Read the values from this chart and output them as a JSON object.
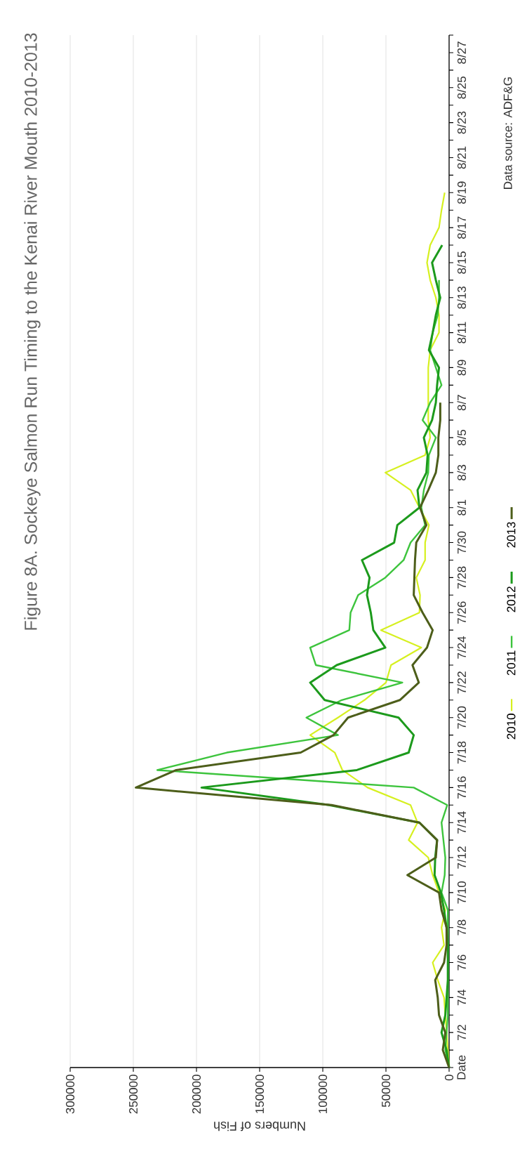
{
  "chart_data": {
    "type": "line",
    "orientation": "horizontal",
    "title": "Figure 8A. Sockeye Salmon Run Timing to the Kenai River Mouth 2010-2013",
    "xlabel": "Numbers of Fish",
    "annotations": [
      "Data source: ADF&G"
    ],
    "categories": [
      null,
      "8/27",
      null,
      "8/25",
      null,
      "8/23",
      null,
      "8/21",
      null,
      "8/19",
      null,
      "8/17",
      null,
      "8/15",
      null,
      "8/13",
      null,
      "8/11",
      null,
      "8/9",
      null,
      "8/7",
      null,
      "8/5",
      null,
      "8/3",
      null,
      "8/1",
      null,
      "7/30",
      null,
      "7/28",
      null,
      "7/26",
      null,
      "7/24",
      null,
      "7/22",
      null,
      "7/20",
      null,
      "7/18",
      null,
      "7/16",
      null,
      "7/14",
      null,
      "7/12",
      null,
      "7/10",
      null,
      "7/8",
      null,
      "7/6",
      null,
      "7/4",
      null,
      "7/2",
      null,
      "Date"
    ],
    "series": [
      {
        "name": "2010",
        "color": "#d6f020",
        "values": [
          null,
          null,
          null,
          null,
          null,
          null,
          null,
          null,
          null,
          3500,
          6000,
          8000,
          15000,
          17500,
          15000,
          10500,
          8000,
          8000,
          15000,
          16500,
          16500,
          16500,
          16500,
          15000,
          19000,
          50500,
          30500,
          23500,
          16000,
          19000,
          19000,
          26000,
          23000,
          23500,
          54000,
          22000,
          46000,
          50000,
          67000,
          88000,
          110000,
          90500,
          84500,
          64500,
          30500,
          25000,
          32000,
          16500,
          13000,
          8000,
          3000,
          6000,
          4000,
          13000,
          9000,
          4000,
          3000,
          2000,
          1000,
          0
        ]
      },
      {
        "name": "2011",
        "color": "#3dc43d",
        "values": [
          null,
          null,
          null,
          null,
          null,
          null,
          null,
          null,
          null,
          null,
          null,
          null,
          null,
          null,
          8000,
          8000,
          9000,
          13000,
          15000,
          10500,
          6000,
          15000,
          21000,
          10500,
          16000,
          16500,
          20000,
          22000,
          19000,
          30500,
          36000,
          50500,
          72000,
          78000,
          79000,
          110000,
          105500,
          37000,
          85000,
          113000,
          88000,
          176000,
          231000,
          28000,
          1500,
          6000,
          4500,
          3000,
          3500,
          6000,
          1000,
          1000,
          1000,
          1000,
          1000,
          1000,
          1000,
          2000,
          3000,
          0
        ]
      },
      {
        "name": "2012",
        "color": "#1c9a1c",
        "values": [
          null,
          null,
          null,
          null,
          null,
          null,
          null,
          null,
          null,
          null,
          null,
          null,
          5500,
          13500,
          10500,
          7000,
          10500,
          13000,
          16000,
          8000,
          9500,
          10500,
          13500,
          20000,
          17000,
          18000,
          25000,
          23500,
          41000,
          43500,
          69000,
          63000,
          65000,
          62000,
          60000,
          50500,
          89000,
          110000,
          98500,
          40000,
          28000,
          32000,
          73000,
          196000,
          95000,
          23500,
          9500,
          11000,
          11500,
          6500,
          4000,
          2000,
          1000,
          1000,
          1000,
          2000,
          3000,
          6000,
          2000,
          0
        ]
      },
      {
        "name": "2013",
        "color": "#4d5e1a",
        "values": [
          null,
          null,
          null,
          null,
          null,
          null,
          null,
          null,
          null,
          null,
          null,
          null,
          null,
          null,
          null,
          null,
          null,
          null,
          null,
          null,
          null,
          7000,
          7000,
          8500,
          8500,
          10500,
          16500,
          23000,
          18000,
          26000,
          27000,
          27500,
          28000,
          21000,
          13000,
          17500,
          29000,
          24000,
          39000,
          80000,
          91500,
          117500,
          216000,
          248000,
          93000,
          23500,
          9500,
          10500,
          33000,
          8000,
          6000,
          2000,
          2000,
          4000,
          11000,
          9000,
          8000,
          3000,
          5000,
          0
        ]
      }
    ],
    "xlim": [
      300000,
      0
    ],
    "xticks": [
      300000,
      250000,
      200000,
      150000,
      100000,
      50000,
      0
    ],
    "grid": "x",
    "legend": "right"
  }
}
